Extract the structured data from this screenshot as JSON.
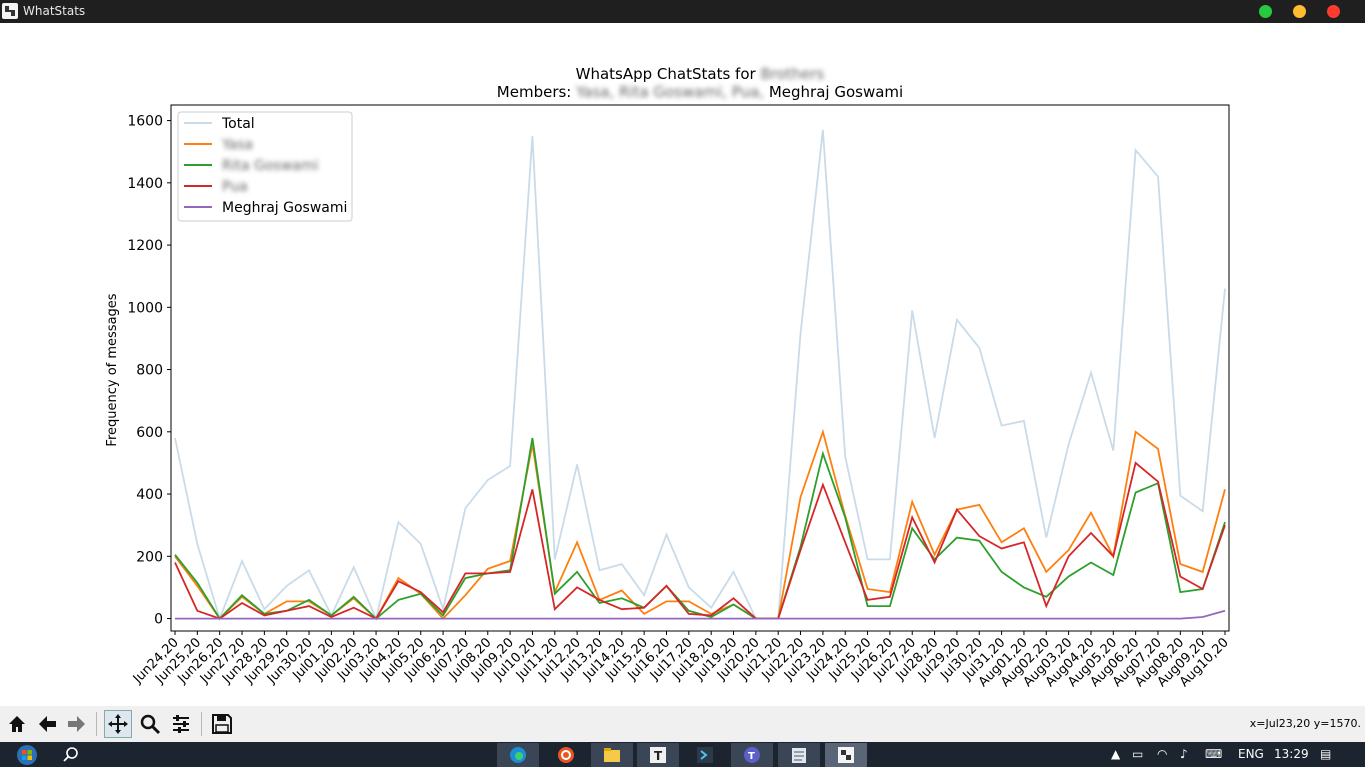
{
  "window": {
    "title": "WhatStats"
  },
  "chart_data": {
    "type": "line",
    "title_prefix": "WhatsApp ChatStats for",
    "title_redacted": "Brothers",
    "subtitle_prefix": "Members:",
    "subtitle_redacted": "Yasa, Rita Goswami, Pua,",
    "subtitle_suffix": "Meghraj Goswami",
    "ylabel": "Frequency of messages",
    "xlabel": "",
    "ylim": [
      -40,
      1650
    ],
    "yticks": [
      0,
      200,
      400,
      600,
      800,
      1000,
      1200,
      1400,
      1600
    ],
    "grid": false,
    "legend_position": "top-left",
    "categories": [
      "Jun24,20",
      "Jun25,20",
      "Jun26,20",
      "Jun27,20",
      "Jun28,20",
      "Jun29,20",
      "Jun30,20",
      "Jul01,20",
      "Jul02,20",
      "Jul03,20",
      "Jul04,20",
      "Jul05,20",
      "Jul06,20",
      "Jul07,20",
      "Jul08,20",
      "Jul09,20",
      "Jul10,20",
      "Jul11,20",
      "Jul12,20",
      "Jul13,20",
      "Jul14,20",
      "Jul15,20",
      "Jul16,20",
      "Jul17,20",
      "Jul18,20",
      "Jul19,20",
      "Jul20,20",
      "Jul21,20",
      "Jul22,20",
      "Jul23,20",
      "Jul24,20",
      "Jul25,20",
      "Jul26,20",
      "Jul27,20",
      "Jul28,20",
      "Jul29,20",
      "Jul30,20",
      "Jul31,20",
      "Aug01,20",
      "Aug02,20",
      "Aug03,20",
      "Aug04,20",
      "Aug05,20",
      "Aug06,20",
      "Aug07,20",
      "Aug08,20",
      "Aug09,20",
      "Aug10,20"
    ],
    "series": [
      {
        "name": "Total",
        "redacted": false,
        "color": "#c9dbe9",
        "values": [
          580,
          240,
          0,
          185,
          30,
          105,
          155,
          10,
          165,
          0,
          310,
          240,
          30,
          355,
          445,
          490,
          1550,
          190,
          495,
          155,
          175,
          75,
          270,
          100,
          35,
          150,
          0,
          0,
          915,
          1570,
          520,
          190,
          190,
          990,
          580,
          960,
          870,
          620,
          635,
          260,
          560,
          790,
          540,
          1505,
          1420,
          395,
          345,
          1060
        ]
      },
      {
        "name": "Yasa",
        "redacted": true,
        "color": "#ff7f0e",
        "values": [
          200,
          105,
          0,
          70,
          15,
          55,
          55,
          10,
          65,
          0,
          130,
          80,
          0,
          75,
          160,
          185,
          560,
          85,
          245,
          60,
          90,
          15,
          55,
          55,
          15,
          45,
          0,
          0,
          390,
          600,
          330,
          95,
          85,
          375,
          205,
          350,
          365,
          245,
          290,
          150,
          220,
          340,
          200,
          600,
          545,
          175,
          150,
          415
        ]
      },
      {
        "name": "Rita Goswami",
        "redacted": true,
        "color": "#2ca02c",
        "values": [
          205,
          115,
          0,
          75,
          15,
          25,
          60,
          10,
          70,
          0,
          60,
          80,
          10,
          130,
          145,
          155,
          580,
          80,
          150,
          50,
          65,
          35,
          105,
          25,
          5,
          45,
          0,
          0,
          230,
          530,
          325,
          40,
          40,
          290,
          190,
          260,
          250,
          150,
          100,
          70,
          135,
          180,
          140,
          405,
          435,
          85,
          95,
          310
        ]
      },
      {
        "name": "Pua",
        "redacted": true,
        "color": "#d62728",
        "values": [
          180,
          25,
          0,
          50,
          10,
          25,
          40,
          5,
          35,
          0,
          120,
          85,
          20,
          145,
          145,
          150,
          415,
          30,
          100,
          60,
          30,
          35,
          105,
          15,
          10,
          65,
          0,
          0,
          220,
          430,
          245,
          60,
          70,
          325,
          180,
          350,
          265,
          225,
          245,
          40,
          200,
          275,
          200,
          500,
          440,
          135,
          95,
          300
        ]
      },
      {
        "name": "Meghraj Goswami",
        "redacted": false,
        "color": "#9467bd",
        "values": [
          0,
          0,
          0,
          0,
          0,
          0,
          0,
          0,
          0,
          0,
          0,
          0,
          0,
          0,
          0,
          0,
          0,
          0,
          0,
          0,
          0,
          0,
          0,
          0,
          0,
          0,
          0,
          0,
          0,
          0,
          0,
          0,
          0,
          0,
          0,
          0,
          0,
          0,
          0,
          0,
          0,
          0,
          0,
          0,
          0,
          0,
          5,
          25
        ]
      }
    ]
  },
  "toolbar": {
    "buttons": [
      "home-icon",
      "back-arrow-icon",
      "forward-arrow-icon",
      "pan-icon",
      "zoom-icon",
      "configure-icon",
      "save-icon"
    ],
    "coords": "x=Jul23,20 y=1570."
  },
  "taskbar": {
    "apps": [
      "edge-icon",
      "ubuntu-icon",
      "file-explorer-icon",
      "typora-icon",
      "terminal-icon",
      "teams-icon",
      "notepad-icon",
      "whatstats-icon"
    ],
    "language": "ENG",
    "time": "13:29"
  }
}
